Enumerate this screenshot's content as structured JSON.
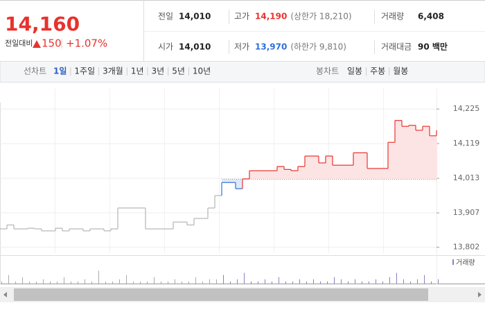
{
  "header": {
    "price": "14,160",
    "change_label": "전일대비",
    "change": "150",
    "change_rate": "+1.07%"
  },
  "info": [
    {
      "label": "전일",
      "value": "14,010"
    },
    {
      "label": "고가",
      "value": "14,190",
      "note": "(상한가 18,210)"
    },
    {
      "label": "거래량",
      "value": "6,408"
    },
    {
      "label": "시가",
      "value": "14,010"
    },
    {
      "label": "저가",
      "value": "13,970",
      "note": "(하한가 9,810)"
    },
    {
      "label": "거래대금",
      "value": "90 백만"
    }
  ],
  "tabs": {
    "line_label": "선차트",
    "line": [
      "1일",
      "1주일",
      "3개월",
      "1년",
      "3년",
      "5년",
      "10년"
    ],
    "selected": 0,
    "candle_label": "봉차트",
    "candle": [
      "일봉",
      "주봉",
      "월봉"
    ]
  },
  "chart_data": {
    "type": "line",
    "ylim": [
      13784,
      14287
    ],
    "yticks": [
      {
        "value": 14225,
        "label": "14,225"
      },
      {
        "value": 14119,
        "label": "14,119"
      },
      {
        "value": 14013,
        "label": "14,013"
      },
      {
        "value": 13907,
        "label": "13,907"
      },
      {
        "value": 13802,
        "label": "13,802"
      }
    ],
    "baseline": 14010,
    "series": [
      {
        "color": "#b5b5b5",
        "values": [
          13858,
          13870,
          13858,
          13858,
          13860,
          13858,
          13852,
          13852,
          13860,
          13852,
          13858,
          13858,
          13852,
          13858,
          13858,
          13852,
          13858,
          13922,
          13922,
          13922,
          13922,
          13858,
          13858,
          13858,
          13858,
          13879,
          13879,
          13870,
          13890,
          13890,
          13922,
          13960,
          null,
          null,
          null,
          null,
          null,
          null,
          null,
          null,
          null,
          null,
          null,
          null,
          null,
          null,
          null,
          null,
          null,
          null,
          null,
          null,
          null,
          null,
          null,
          null,
          null,
          null,
          null,
          null,
          null,
          null,
          null,
          null
        ]
      },
      {
        "color": "#e8322d",
        "below_color": "#2f6fd8",
        "values": [
          null,
          null,
          null,
          null,
          null,
          null,
          null,
          null,
          null,
          null,
          null,
          null,
          null,
          null,
          null,
          null,
          null,
          null,
          null,
          null,
          null,
          null,
          null,
          null,
          null,
          null,
          null,
          null,
          null,
          null,
          null,
          null,
          14000,
          14000,
          13981,
          14011,
          14036,
          14036,
          14036,
          14036,
          14049,
          14040,
          14036,
          14049,
          14081,
          14081,
          14060,
          14081,
          14053,
          14053,
          14053,
          14091,
          14091,
          14043,
          14043,
          14043,
          14123,
          14190,
          14172,
          14175,
          14160,
          14172,
          14143,
          14160
        ]
      }
    ],
    "volume": {
      "label": "거래량",
      "color": "#8a7fc0",
      "ylim": [
        0,
        10
      ],
      "values": [
        1,
        4,
        1,
        3,
        1,
        1,
        2,
        1,
        1,
        3,
        1,
        1,
        2,
        1,
        6,
        1,
        1,
        2,
        4,
        1,
        1,
        1,
        3,
        1,
        1,
        2,
        1,
        1,
        3,
        1,
        2,
        2,
        4,
        1,
        2,
        5,
        1,
        1,
        2,
        1,
        3,
        1,
        1,
        2,
        1,
        2,
        1,
        1,
        3,
        2,
        1,
        2,
        1,
        1,
        2,
        1,
        3,
        5,
        2,
        1,
        2,
        4,
        1,
        2
      ]
    }
  }
}
